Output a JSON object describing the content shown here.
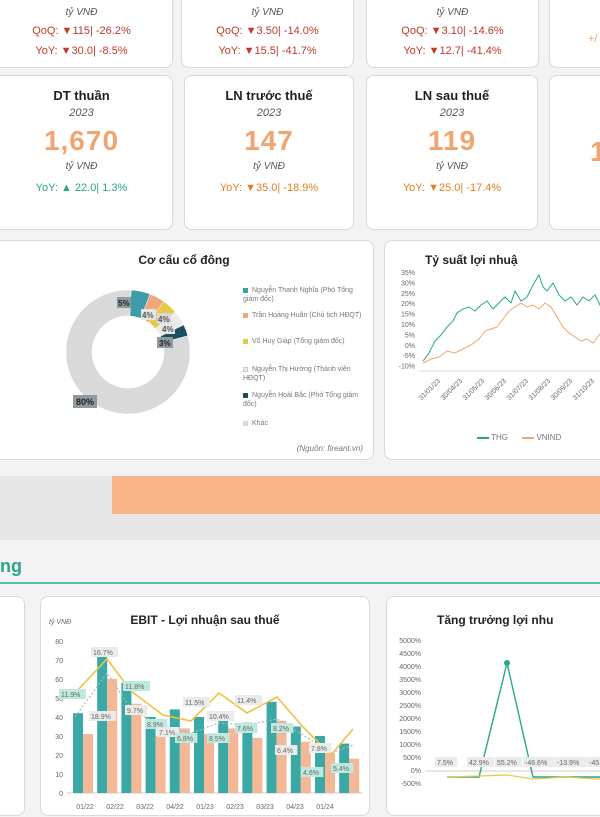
{
  "top_cards": [
    {
      "unit": "tỷ VNĐ",
      "qoq": "QoQ: ▼115| -26.2%",
      "yoy": "YoY: ▼30.0| -8.5%"
    },
    {
      "unit": "tỷ VNĐ",
      "qoq": "QoQ: ▼3.50| -14.0%",
      "yoy": "YoY: ▼15.5| -41.7%"
    },
    {
      "unit": "tỷ VNĐ",
      "qoq": "QoQ: ▼3.10| -14.6%",
      "yoy": "YoY: ▼12.7| -41.4%"
    },
    {
      "partial": "+/"
    }
  ],
  "kpis": [
    {
      "title": "DT thuần",
      "year": "2023",
      "value": "1,670",
      "unit": "tỷ VNĐ",
      "change": "YoY: ▲ 22.0| 1.3%",
      "trend": "up"
    },
    {
      "title": "LN trước thuế",
      "year": "2023",
      "value": "147",
      "unit": "tỷ VNĐ",
      "change": "YoY: ▼35.0| -18.9%",
      "trend": "down"
    },
    {
      "title": "LN sau thuế",
      "year": "2023",
      "value": "119",
      "unit": "tỷ VNĐ",
      "change": "YoY: ▼25.0| -17.4%",
      "trend": "down"
    },
    {
      "value": "1",
      "change": "+/"
    }
  ],
  "shareholders": {
    "title": "Cơ cấu cổ đông",
    "source": "(Nguồn: fireant.vn)",
    "slices": [
      {
        "label": "Nguyễn Thanh Nghĩa (Phó Tổng giám đốc)",
        "pct": 5,
        "pct_label": "5%",
        "color": "#3d9ca7"
      },
      {
        "label": "Trần Hoàng Huân (Chủ tịch HĐQT)",
        "pct": 4,
        "pct_label": "4%",
        "color": "#f2a67c"
      },
      {
        "label": "Võ Huy Giáp (Tổng giám đốc)",
        "pct": 4,
        "pct_label": "4%",
        "color": "#e8c84a"
      },
      {
        "label": "Nguyễn Thị Hường (Thành viên HĐQT)",
        "pct": 4,
        "pct_label": "4%",
        "color": "#ececec"
      },
      {
        "label": "Nguyễn Hoài Bắc (Phó Tổng giám đốc)",
        "pct": 3,
        "pct_label": "3%",
        "color": "#1f4e63"
      },
      {
        "label": "Khác",
        "pct": 80,
        "pct_label": "80%",
        "color": "#d9d9d9"
      }
    ]
  },
  "return_chart": {
    "title": "Tỷ suất lợi nhuậ",
    "yticks": [
      "35%",
      "30%",
      "25%",
      "20%",
      "15%",
      "10%",
      "5%",
      "0%",
      "-5%",
      "-10%"
    ],
    "xticks": [
      "31/01/23",
      "30/04/23",
      "31/05/23",
      "30/06/23",
      "31/07/23",
      "31/08/23",
      "30/09/23",
      "31/10/23"
    ],
    "legend": [
      "THG",
      "VNIND"
    ],
    "colors": {
      "THG": "#2aa68a",
      "VNINDEX": "#f0a46f"
    }
  },
  "section_title": "ng",
  "ebit_chart": {
    "title": "EBIT - Lợi nhuận sau thuế",
    "unit": "tỷ VNĐ",
    "yticks": [
      "80",
      "70",
      "60",
      "50",
      "40",
      "30",
      "20",
      "10",
      "0"
    ],
    "labels": [
      "11.9%",
      "16.7%",
      "11.8%",
      "9.7%",
      "8.9%",
      "7.1%",
      "6.8%",
      "11.5%",
      "8.5%",
      "10.4%",
      "7.6%",
      "11.4%",
      "8.2%",
      "6.4%",
      "4.6%",
      "7.8%",
      "5.4%",
      "18.9%"
    ],
    "xticks": [
      "01/22",
      "02/22",
      "03/22",
      "04/22",
      "01/23",
      "02/23",
      "03/23",
      "04/23",
      "01/24"
    ]
  },
  "growth_chart": {
    "title": "Tăng trưởng lợi nhu",
    "yticks": [
      "5000%",
      "4500%",
      "4000%",
      "3500%",
      "3000%",
      "2500%",
      "2000%",
      "1500%",
      "1000%",
      "500%",
      "0%",
      "-500%"
    ],
    "labels": [
      "7.5%",
      "42.9%",
      "55.2%",
      "-46.6%",
      "-13.9%",
      "-45.9"
    ]
  }
}
